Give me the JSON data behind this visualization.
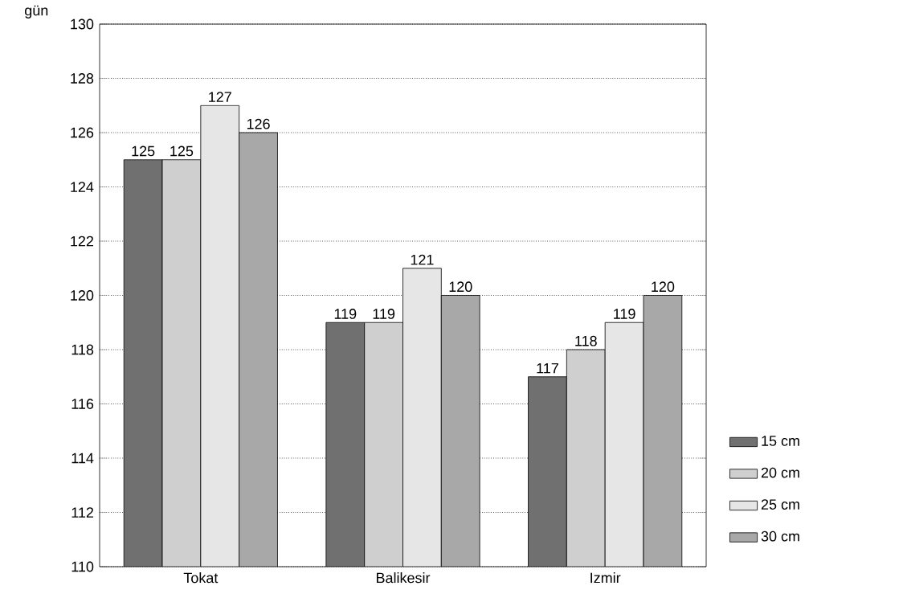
{
  "chart_data": {
    "type": "bar",
    "ylabel": "gün",
    "categories": [
      "Tokat",
      "Balikesir",
      "Izmir"
    ],
    "series": [
      {
        "name": "15 cm",
        "color": "#707070",
        "values": [
          125,
          119,
          117
        ]
      },
      {
        "name": "20 cm",
        "color": "#cfcfcf",
        "values": [
          125,
          119,
          118
        ]
      },
      {
        "name": "25 cm",
        "color": "#e6e6e6",
        "values": [
          127,
          121,
          119
        ]
      },
      {
        "name": "30 cm",
        "color": "#a8a8a8",
        "values": [
          126,
          120,
          120
        ]
      }
    ],
    "ylim": [
      110,
      130
    ],
    "yticks": [
      110,
      112,
      114,
      116,
      118,
      120,
      122,
      124,
      126,
      128,
      130
    ],
    "grid": "y",
    "legend": "right",
    "data_labels": true
  }
}
